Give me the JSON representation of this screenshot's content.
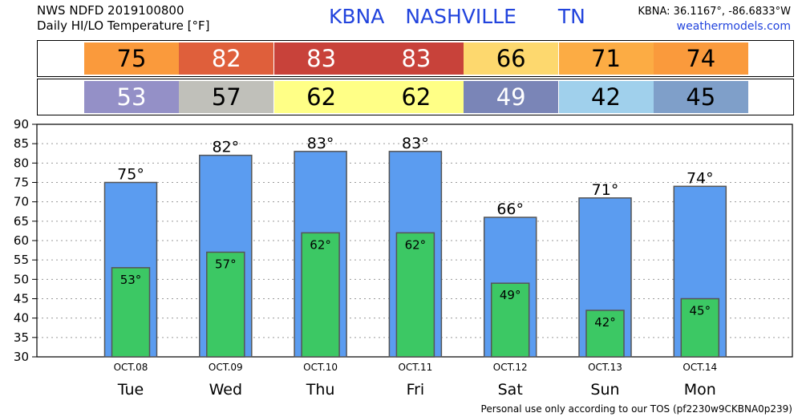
{
  "header": {
    "line1": "NWS NDFD 2019100800",
    "line2": "Daily HI/LO Temperature [°F]",
    "station": "KBNA",
    "city": "NASHVILLE",
    "state": "TN",
    "coords": "KBNA: 36.1167°, -86.6833°W",
    "site": "weathermodels.com"
  },
  "hi_row": [
    {
      "value": "75",
      "color": "#fa9a3c",
      "text_color": "#000000"
    },
    {
      "value": "82",
      "color": "#df5f3b",
      "text_color": "#ffffff"
    },
    {
      "value": "83",
      "color": "#c8423a",
      "text_color": "#ffffff"
    },
    {
      "value": "83",
      "color": "#c8423a",
      "text_color": "#ffffff"
    },
    {
      "value": "66",
      "color": "#fdd86e",
      "text_color": "#000000"
    },
    {
      "value": "71",
      "color": "#fcac44",
      "text_color": "#000000"
    },
    {
      "value": "74",
      "color": "#fa9a3c",
      "text_color": "#000000"
    }
  ],
  "lo_row": [
    {
      "value": "53",
      "color": "#9490c7",
      "text_color": "#ffffff"
    },
    {
      "value": "57",
      "color": "#c0c0ba",
      "text_color": "#000000"
    },
    {
      "value": "62",
      "color": "#ffff86",
      "text_color": "#000000"
    },
    {
      "value": "62",
      "color": "#ffff86",
      "text_color": "#000000"
    },
    {
      "value": "49",
      "color": "#7a85b7",
      "text_color": "#ffffff"
    },
    {
      "value": "42",
      "color": "#a0d0ec",
      "text_color": "#000000"
    },
    {
      "value": "45",
      "color": "#7f9fc9",
      "text_color": "#000000"
    }
  ],
  "footer": "Personal use only according to our TOS (pf2230w9CKBNA0p239)",
  "chart_data": {
    "type": "bar",
    "categories": [
      "Tue",
      "Wed",
      "Thu",
      "Fri",
      "Sat",
      "Sun",
      "Mon"
    ],
    "dates": [
      "OCT.08",
      "OCT.09",
      "OCT.10",
      "OCT.11",
      "OCT.12",
      "OCT.13",
      "OCT.14"
    ],
    "series": [
      {
        "values": [
          75,
          82,
          83,
          83,
          66,
          71,
          74
        ],
        "color": "#5b9cf0"
      },
      {
        "values": [
          53,
          57,
          62,
          62,
          49,
          42,
          45
        ],
        "color": "#3cc864"
      }
    ],
    "data_labels_hi": [
      "75°",
      "82°",
      "83°",
      "83°",
      "66°",
      "71°",
      "74°"
    ],
    "data_labels_lo": [
      "53°",
      "57°",
      "62°",
      "62°",
      "49°",
      "42°",
      "45°"
    ],
    "ylim": [
      30,
      90
    ],
    "yticks": [
      "30",
      "35",
      "40",
      "45",
      "50",
      "55",
      "60",
      "65",
      "70",
      "75",
      "80",
      "85",
      "90"
    ],
    "grid": true
  }
}
